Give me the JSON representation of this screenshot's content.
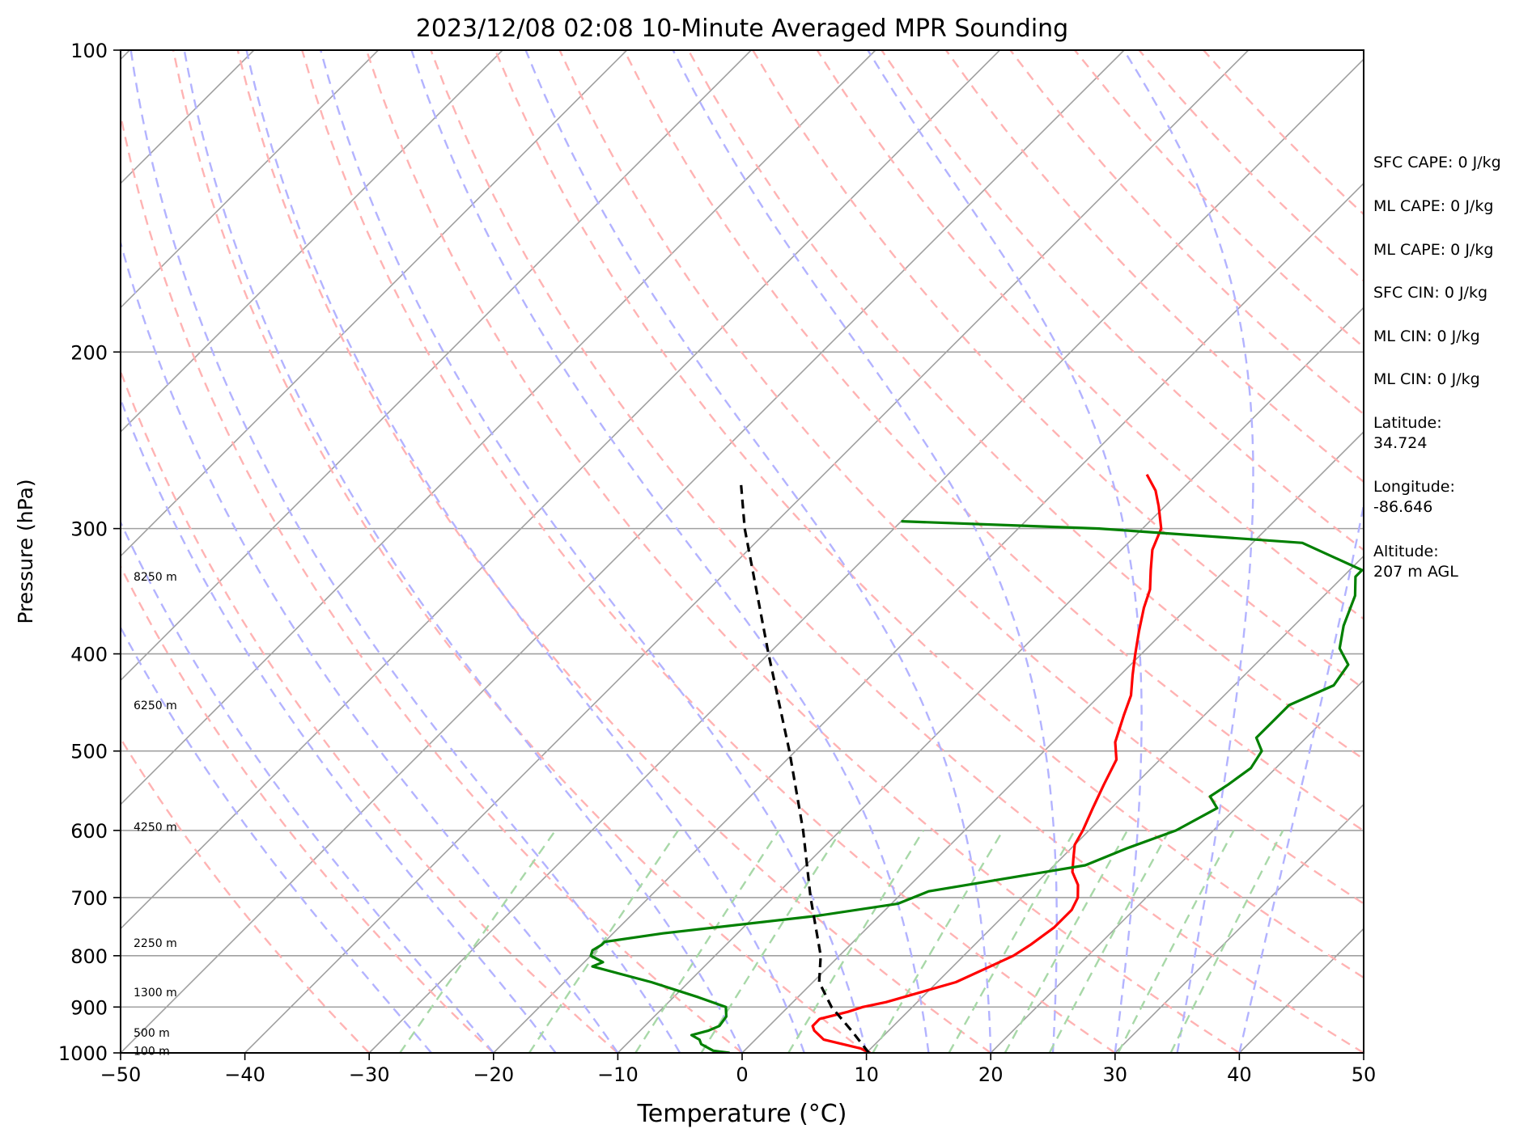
{
  "chart_data": {
    "type": "line",
    "title": "2023/12/08 02:08 10-Minute Averaged MPR Sounding",
    "xlabel": "Temperature (°C)",
    "ylabel": "Pressure (hPa)",
    "xlim": [
      -50,
      50
    ],
    "ylim": [
      1000,
      100
    ],
    "y_scale": "log",
    "skew": "skew-T",
    "grid": true,
    "x_ticks": [
      "−50",
      "−40",
      "−30",
      "−20",
      "−10",
      "0",
      "10",
      "20",
      "30",
      "40",
      "50"
    ],
    "x_tick_values": [
      -50,
      -40,
      -30,
      -20,
      -10,
      0,
      10,
      20,
      30,
      40,
      50
    ],
    "y_ticks": [
      "100",
      "200",
      "300",
      "400",
      "500",
      "600",
      "700",
      "800",
      "900",
      "1000"
    ],
    "y_tick_values": [
      100,
      200,
      300,
      400,
      500,
      600,
      700,
      800,
      900,
      1000
    ],
    "height_labels": [
      {
        "p": 335,
        "text": "8250 m"
      },
      {
        "p": 450,
        "text": "6250 m"
      },
      {
        "p": 595,
        "text": "4250 m"
      },
      {
        "p": 777,
        "text": "2250 m"
      },
      {
        "p": 870,
        "text": "1300 m"
      },
      {
        "p": 955,
        "text": "500 m"
      },
      {
        "p": 995,
        "text": "100 m"
      }
    ],
    "series": [
      {
        "role": "temperature",
        "color": "#ff0000",
        "points": [
          [
            1000,
            10.3
          ],
          [
            990,
            9.2
          ],
          [
            970,
            5.5
          ],
          [
            950,
            4
          ],
          [
            940,
            3.5
          ],
          [
            925,
            3.5
          ],
          [
            910,
            5.2
          ],
          [
            900,
            6
          ],
          [
            890,
            7.5
          ],
          [
            850,
            11.5
          ],
          [
            820,
            13
          ],
          [
            800,
            14
          ],
          [
            780,
            14.5
          ],
          [
            750,
            15
          ],
          [
            720,
            15
          ],
          [
            700,
            14.5
          ],
          [
            680,
            13.5
          ],
          [
            660,
            12
          ],
          [
            640,
            11
          ],
          [
            620,
            10
          ],
          [
            600,
            9.5
          ],
          [
            570,
            8.5
          ],
          [
            540,
            7.5
          ],
          [
            510,
            6.5
          ],
          [
            490,
            5
          ],
          [
            460,
            3.5
          ],
          [
            440,
            2.5
          ],
          [
            420,
            1
          ],
          [
            400,
            -0.5
          ],
          [
            380,
            -2
          ],
          [
            360,
            -3.5
          ],
          [
            345,
            -4.5
          ],
          [
            330,
            -6
          ],
          [
            315,
            -7.5
          ],
          [
            300,
            -8.5
          ],
          [
            285,
            -10.5
          ],
          [
            275,
            -12
          ],
          [
            265,
            -14
          ]
        ]
      },
      {
        "role": "dewpoint",
        "color": "#008000",
        "points": [
          [
            1000,
            -1
          ],
          [
            995,
            -2.5
          ],
          [
            980,
            -4
          ],
          [
            970,
            -4.5
          ],
          [
            960,
            -5.5
          ],
          [
            950,
            -4.5
          ],
          [
            940,
            -4
          ],
          [
            920,
            -4.2
          ],
          [
            900,
            -5
          ],
          [
            880,
            -8
          ],
          [
            850,
            -13
          ],
          [
            820,
            -19
          ],
          [
            812,
            -18.5
          ],
          [
            800,
            -20
          ],
          [
            790,
            -20.3
          ],
          [
            780,
            -20
          ],
          [
            775,
            -20
          ],
          [
            760,
            -16
          ],
          [
            730,
            -5
          ],
          [
            710,
            0.5
          ],
          [
            690,
            2
          ],
          [
            650,
            12.5
          ],
          [
            625,
            14.5
          ],
          [
            600,
            17
          ],
          [
            570,
            18.5
          ],
          [
            555,
            17
          ],
          [
            540,
            17.5
          ],
          [
            520,
            18
          ],
          [
            500,
            17.5
          ],
          [
            485,
            16
          ],
          [
            470,
            16
          ],
          [
            450,
            16
          ],
          [
            430,
            18
          ],
          [
            410,
            17.5
          ],
          [
            395,
            15.5
          ],
          [
            375,
            14
          ],
          [
            350,
            12.5
          ],
          [
            335,
            11
          ],
          [
            330,
            11
          ],
          [
            310,
            4
          ],
          [
            300,
            -13.5
          ],
          [
            295,
            -30
          ]
        ]
      },
      {
        "role": "parcel",
        "color": "#000000",
        "dash": "dashed",
        "points": [
          [
            1000,
            10.2
          ],
          [
            950,
            7
          ],
          [
            900,
            3.5
          ],
          [
            850,
            0.5
          ],
          [
            800,
            -1.5
          ],
          [
            700,
            -7
          ],
          [
            600,
            -13
          ],
          [
            500,
            -20.5
          ],
          [
            400,
            -30
          ],
          [
            300,
            -42
          ],
          [
            270,
            -46
          ]
        ]
      }
    ]
  },
  "info_panel": {
    "sfc_cape": "SFC CAPE: 0 J/kg",
    "ml_cape_1": "ML CAPE: 0 J/kg",
    "ml_cape_2": "ML CAPE: 0 J/kg",
    "sfc_cin": "SFC CIN: 0 J/kg",
    "ml_cin_1": "ML CIN: 0 J/kg",
    "ml_cin_2": "ML CIN: 0 J/kg",
    "latitude_label": "Latitude:",
    "latitude_value": "34.724",
    "longitude_label": "Longitude:",
    "longitude_value": "-86.646",
    "altitude_label": "Altitude:",
    "altitude_value": "207 m AGL"
  },
  "colors": {
    "isotherm": "#a0a0a0",
    "dry_adiabat": "#ffb3b3",
    "moist_adiabat": "#b3b3ff",
    "mixing_ratio": "#a8d8a8"
  }
}
